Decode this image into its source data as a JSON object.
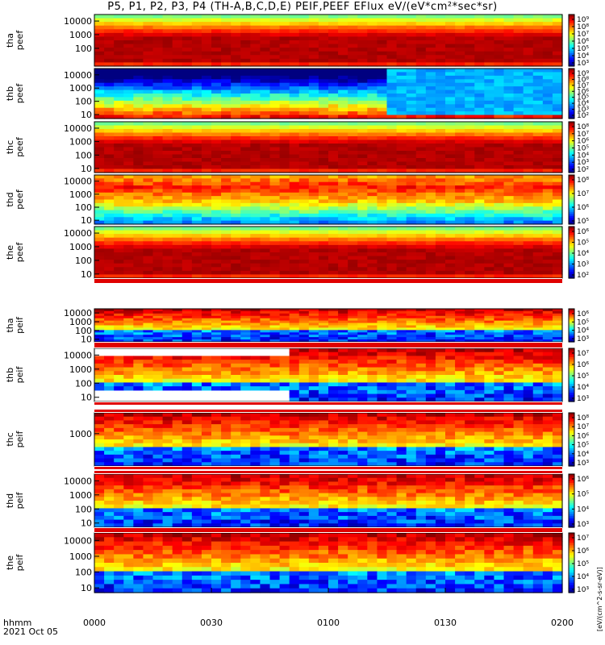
{
  "title": "P5, P1, P2, P3, P4 (TH-A,B,C,D,E) PEIF,PEEF EFlux eV/(eV*cm²*sec*sr)",
  "x_axis": {
    "legend_line1": "hhmm",
    "legend_line2": "2021 Oct 05",
    "ticks": [
      "0000",
      "0030",
      "0100",
      "0130",
      "0200"
    ]
  },
  "colorbar_unit_label": "[eV/(cm^2-s-sr-eV)]",
  "chart_data": {
    "type": "heatmap",
    "time_range": [
      "0000",
      "0200"
    ],
    "x_ticks": [
      "0000",
      "0030",
      "0100",
      "0130",
      "0200"
    ],
    "panels": [
      {
        "name": "peef",
        "probe": "tha",
        "ylabel": [
          "tha",
          "peef"
        ],
        "ylog": true,
        "ylim": [
          5,
          30000
        ],
        "yticks": [
          "10000",
          "1000",
          "100"
        ],
        "cbar_ticks": [
          "10⁹",
          "10⁸",
          "10⁷",
          "10⁶",
          "10⁵",
          "10⁴",
          "10³"
        ]
      },
      {
        "name": "peef",
        "probe": "thb",
        "ylabel": [
          "thb",
          "peef"
        ],
        "ylog": true,
        "ylim": [
          5,
          30000
        ],
        "yticks": [
          "10000",
          "1000",
          "100",
          "10"
        ],
        "cbar_ticks": [
          "10⁹",
          "10⁸",
          "10⁷",
          "10⁶",
          "10⁵",
          "10⁴",
          "10³",
          "10²"
        ]
      },
      {
        "name": "peef",
        "probe": "thc",
        "ylabel": [
          "thc",
          "peef"
        ],
        "ylog": true,
        "ylim": [
          5,
          30000
        ],
        "yticks": [
          "10000",
          "1000",
          "100",
          "10"
        ],
        "cbar_ticks": [
          "10⁸",
          "10⁷",
          "10⁶",
          "10⁵",
          "10⁴",
          "10³",
          "10²"
        ]
      },
      {
        "name": "peef",
        "probe": "thd",
        "ylabel": [
          "thd",
          "peef"
        ],
        "ylog": true,
        "ylim": [
          5,
          30000
        ],
        "yticks": [
          "10000",
          "1000",
          "100",
          "10"
        ],
        "cbar_ticks": [
          "10⁸",
          "10⁷",
          "10⁶",
          "10⁵"
        ]
      },
      {
        "name": "peef",
        "probe": "the",
        "ylabel": [
          "the",
          "peef"
        ],
        "ylog": true,
        "ylim": [
          5,
          30000
        ],
        "yticks": [
          "10000",
          "1000",
          "100",
          "10"
        ],
        "cbar_ticks": [
          "10⁶",
          "10⁵",
          "10⁴",
          "10³",
          "10²"
        ]
      },
      {
        "name": "peif",
        "probe": "tha",
        "ylabel": [
          "tha",
          "peif"
        ],
        "ylog": true,
        "ylim": [
          5,
          30000
        ],
        "yticks": [
          "10000",
          "1000",
          "100",
          "10"
        ],
        "cbar_ticks": [
          "10⁶",
          "10⁵",
          "10⁴",
          "10³"
        ]
      },
      {
        "name": "peif",
        "probe": "thb",
        "ylabel": [
          "thb",
          "peif"
        ],
        "ylog": true,
        "ylim": [
          5,
          30000
        ],
        "yticks": [
          "10000",
          "1000",
          "100",
          "10"
        ],
        "cbar_ticks": [
          "10⁷",
          "10⁶",
          "10⁵",
          "10⁴",
          "10³"
        ]
      },
      {
        "name": "peif",
        "probe": "thc",
        "ylabel": [
          "thc",
          "peif"
        ],
        "ylog": true,
        "ylim": [
          5,
          30000
        ],
        "yticks": [
          "1000"
        ],
        "cbar_ticks": [
          "10⁸",
          "10⁷",
          "10⁶",
          "10⁵",
          "10⁴",
          "10³"
        ]
      },
      {
        "name": "peif",
        "probe": "thd",
        "ylabel": [
          "thd",
          "peif"
        ],
        "ylog": true,
        "ylim": [
          5,
          30000
        ],
        "yticks": [
          "10000",
          "1000",
          "100",
          "10"
        ],
        "cbar_ticks": [
          "10⁶",
          "10⁵",
          "10⁴",
          "10³"
        ]
      },
      {
        "name": "peif",
        "probe": "the",
        "ylabel": [
          "the",
          "peif"
        ],
        "ylog": true,
        "ylim": [
          5,
          30000
        ],
        "yticks": [
          "10000",
          "1000",
          "100",
          "10"
        ],
        "cbar_ticks": [
          "10⁷",
          "10⁶",
          "10⁵",
          "10⁴",
          "10³"
        ]
      }
    ]
  }
}
